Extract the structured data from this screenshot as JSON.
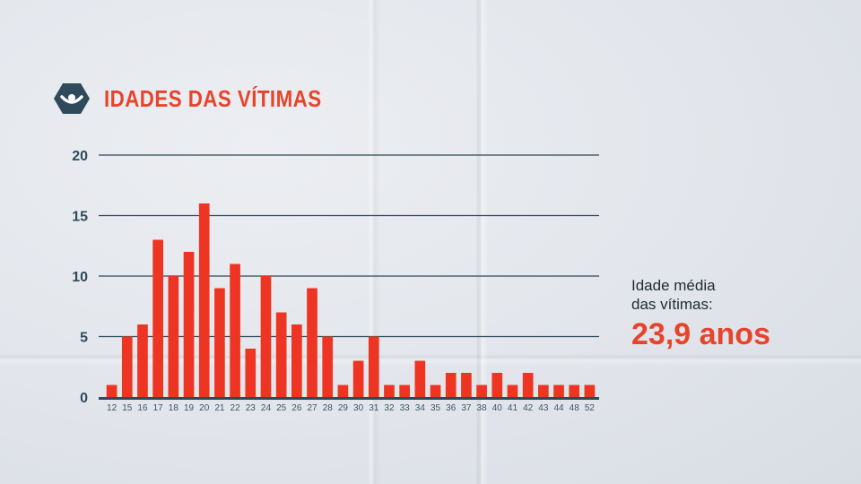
{
  "header": {
    "title": "IDADES DAS VÍTIMAS",
    "logo_icon": "eye-shield-icon"
  },
  "summary": {
    "label_line1": "Idade média",
    "label_line2": "das vítimas:",
    "value": "23,9 anos"
  },
  "colors": {
    "bar": "#ee3524",
    "title": "#e8442c",
    "grid": "#2f4a5a"
  },
  "chart_data": {
    "type": "bar",
    "title": "IDADES DAS VÍTIMAS",
    "xlabel": "",
    "ylabel": "",
    "ylim": [
      0,
      20
    ],
    "yticks": [
      0,
      5,
      10,
      15,
      20
    ],
    "grid": true,
    "legend": "none",
    "categories": [
      "12",
      "15",
      "16",
      "17",
      "18",
      "19",
      "20",
      "21",
      "22",
      "23",
      "24",
      "25",
      "26",
      "27",
      "28",
      "29",
      "30",
      "31",
      "32",
      "33",
      "34",
      "35",
      "36",
      "37",
      "38",
      "40",
      "41",
      "42",
      "43",
      "44",
      "48",
      "52"
    ],
    "values": [
      1,
      5,
      6,
      13,
      10,
      12,
      16,
      9,
      11,
      4,
      10,
      7,
      6,
      9,
      5,
      1,
      3,
      5,
      1,
      1,
      3,
      1,
      2,
      2,
      1,
      2,
      1,
      2,
      1,
      1,
      1,
      1
    ]
  }
}
